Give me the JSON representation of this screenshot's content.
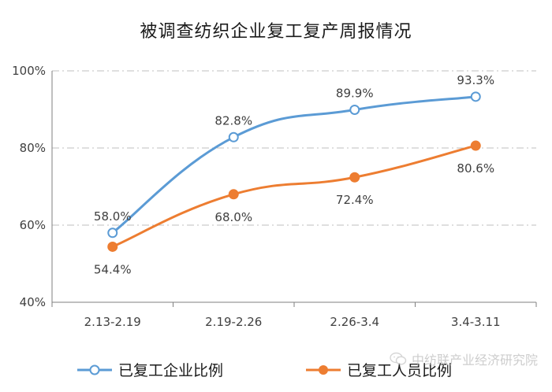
{
  "chart_data": {
    "type": "line",
    "title": "被调查纺织企业复工复产周报情况",
    "categories": [
      "2.13-2.19",
      "2.19-2.26",
      "2.26-3.4",
      "3.4-3.11"
    ],
    "series": [
      {
        "name": "已复工企业比例",
        "values": [
          58.0,
          82.8,
          89.9,
          93.3
        ],
        "labels": [
          "58.0%",
          "82.8%",
          "89.9%",
          "93.3%"
        ],
        "label_position": "above",
        "marker": "hollow-circle",
        "color": "#5b9bd5"
      },
      {
        "name": "已复工人员比例",
        "values": [
          54.4,
          68.0,
          72.4,
          80.6
        ],
        "labels": [
          "54.4%",
          "68.0%",
          "72.4%",
          "80.6%"
        ],
        "label_position": "below",
        "marker": "filled-circle",
        "color": "#ed7d31"
      }
    ],
    "ylim": [
      40,
      100
    ],
    "yticks": [
      40,
      60,
      80,
      100
    ],
    "ytick_labels": [
      "40%",
      "60%",
      "80%",
      "100%"
    ],
    "grid": "horizontal-dashed",
    "smooth": true,
    "legend_position": "bottom-left",
    "xlabel": "",
    "ylabel": ""
  },
  "watermark": {
    "text": "中纺联产业经济研究院",
    "icon": "wechat-icon"
  },
  "colors": {
    "axis": "#7f7f7f",
    "grid": "#bfbfbf",
    "text": "#404040"
  }
}
